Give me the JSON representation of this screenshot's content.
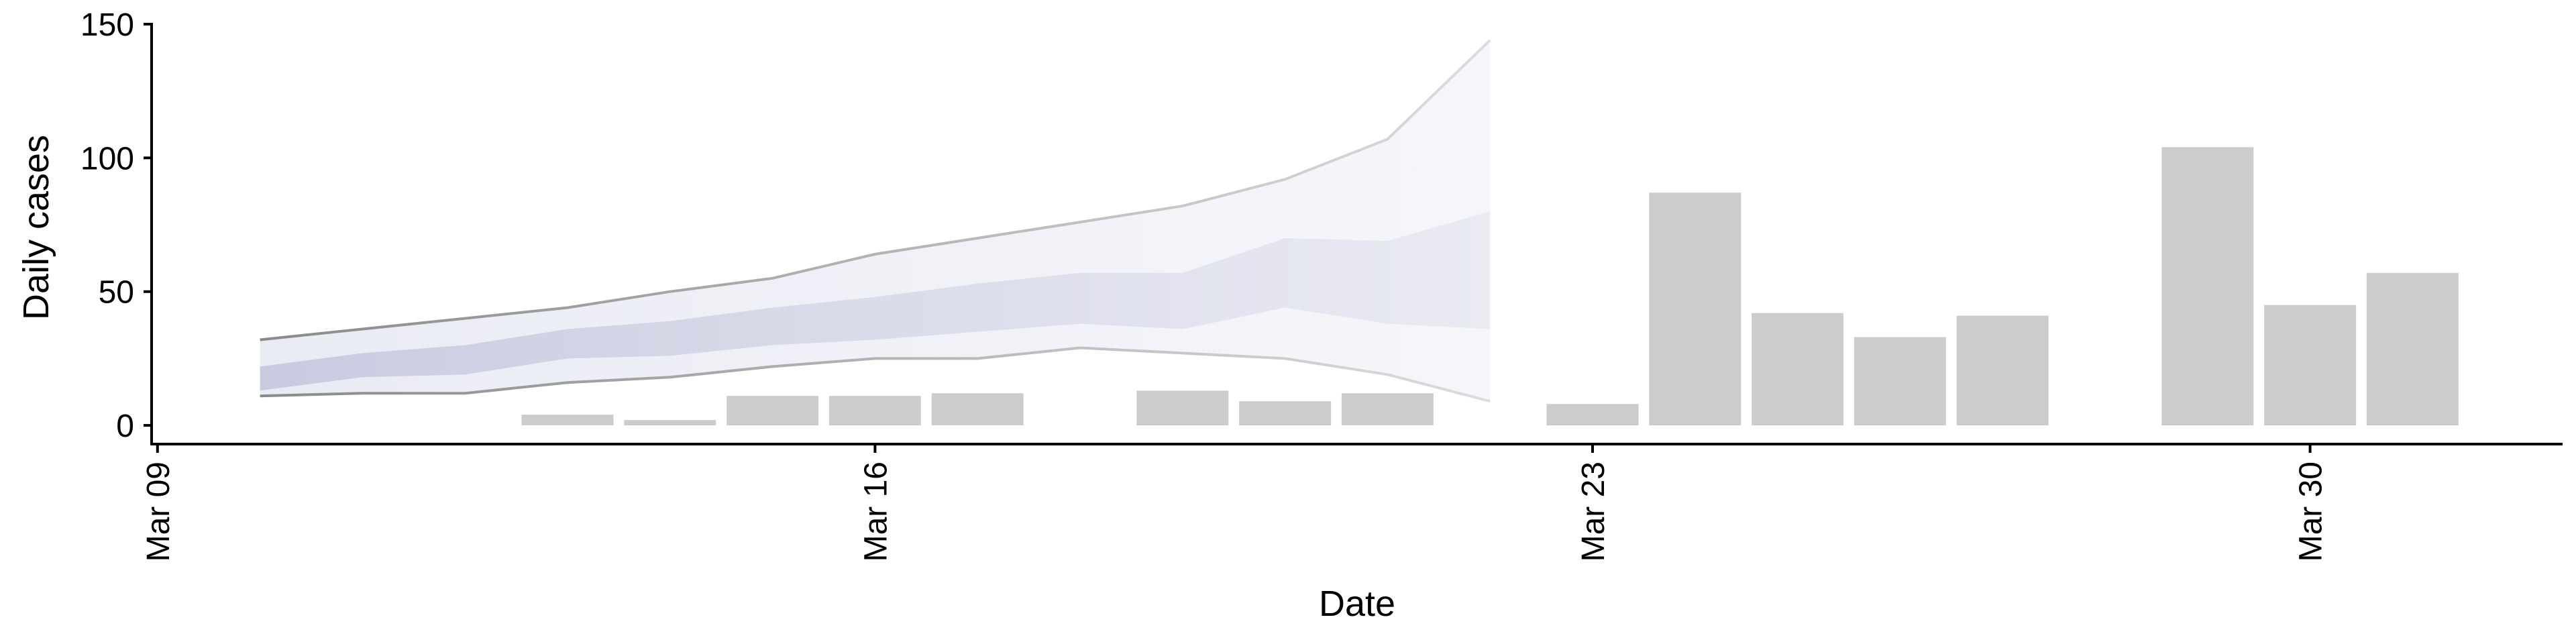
{
  "chart_data": {
    "type": "bar",
    "xlabel": "Date",
    "ylabel": "Daily cases",
    "ylim": [
      -7,
      150
    ],
    "yticks": [
      0,
      50,
      100,
      150
    ],
    "xlim": [
      "2020-03-08",
      "2020-04-03"
    ],
    "xticks": [
      {
        "date": "2020-03-09",
        "label": "Mar 09"
      },
      {
        "date": "2020-03-16",
        "label": "Mar 16"
      },
      {
        "date": "2020-03-23",
        "label": "Mar 23"
      },
      {
        "date": "2020-03-30",
        "label": "Mar 30"
      }
    ],
    "grid": false,
    "legend": "none",
    "bars": [
      {
        "date": "2020-03-13",
        "value": 4
      },
      {
        "date": "2020-03-14",
        "value": 2
      },
      {
        "date": "2020-03-15",
        "value": 11
      },
      {
        "date": "2020-03-16",
        "value": 11
      },
      {
        "date": "2020-03-17",
        "value": 12
      },
      {
        "date": "2020-03-19",
        "value": 13
      },
      {
        "date": "2020-03-20",
        "value": 9
      },
      {
        "date": "2020-03-21",
        "value": 12
      },
      {
        "date": "2020-03-23",
        "value": 8
      },
      {
        "date": "2020-03-24",
        "value": 87
      },
      {
        "date": "2020-03-25",
        "value": 42
      },
      {
        "date": "2020-03-26",
        "value": 33
      },
      {
        "date": "2020-03-27",
        "value": 41
      },
      {
        "date": "2020-03-29",
        "value": 104
      },
      {
        "date": "2020-03-30",
        "value": 45
      },
      {
        "date": "2020-03-31",
        "value": 57
      }
    ],
    "band_outer": [
      {
        "date": "2020-03-10",
        "low": 11,
        "high": 32
      },
      {
        "date": "2020-03-11",
        "low": 12,
        "high": 36
      },
      {
        "date": "2020-03-12",
        "low": 12,
        "high": 40
      },
      {
        "date": "2020-03-13",
        "low": 16,
        "high": 44
      },
      {
        "date": "2020-03-14",
        "low": 18,
        "high": 50
      },
      {
        "date": "2020-03-15",
        "low": 22,
        "high": 55
      },
      {
        "date": "2020-03-16",
        "low": 25,
        "high": 64
      },
      {
        "date": "2020-03-17",
        "low": 25,
        "high": 70
      },
      {
        "date": "2020-03-18",
        "low": 29,
        "high": 76
      },
      {
        "date": "2020-03-19",
        "low": 27,
        "high": 82
      },
      {
        "date": "2020-03-20",
        "low": 25,
        "high": 92
      },
      {
        "date": "2020-03-21",
        "low": 19,
        "high": 107
      },
      {
        "date": "2020-03-22",
        "low": 9,
        "high": 144
      }
    ],
    "band_inner": [
      {
        "date": "2020-03-10",
        "low": 13,
        "high": 22
      },
      {
        "date": "2020-03-11",
        "low": 18,
        "high": 27
      },
      {
        "date": "2020-03-12",
        "low": 19,
        "high": 30
      },
      {
        "date": "2020-03-13",
        "low": 25,
        "high": 36
      },
      {
        "date": "2020-03-14",
        "low": 26,
        "high": 39
      },
      {
        "date": "2020-03-15",
        "low": 30,
        "high": 44
      },
      {
        "date": "2020-03-16",
        "low": 32,
        "high": 48
      },
      {
        "date": "2020-03-17",
        "low": 35,
        "high": 53
      },
      {
        "date": "2020-03-18",
        "low": 38,
        "high": 57
      },
      {
        "date": "2020-03-19",
        "low": 36,
        "high": 57
      },
      {
        "date": "2020-03-20",
        "low": 44,
        "high": 70
      },
      {
        "date": "2020-03-21",
        "low": 38,
        "high": 69
      },
      {
        "date": "2020-03-22",
        "low": 36,
        "high": 80
      }
    ],
    "colors": {
      "bar": "#cccccc",
      "band_inner": "#d2d4e4",
      "band_outer": "#eceef5",
      "band_line": "#8e8e8e",
      "axis": "#000000"
    }
  }
}
